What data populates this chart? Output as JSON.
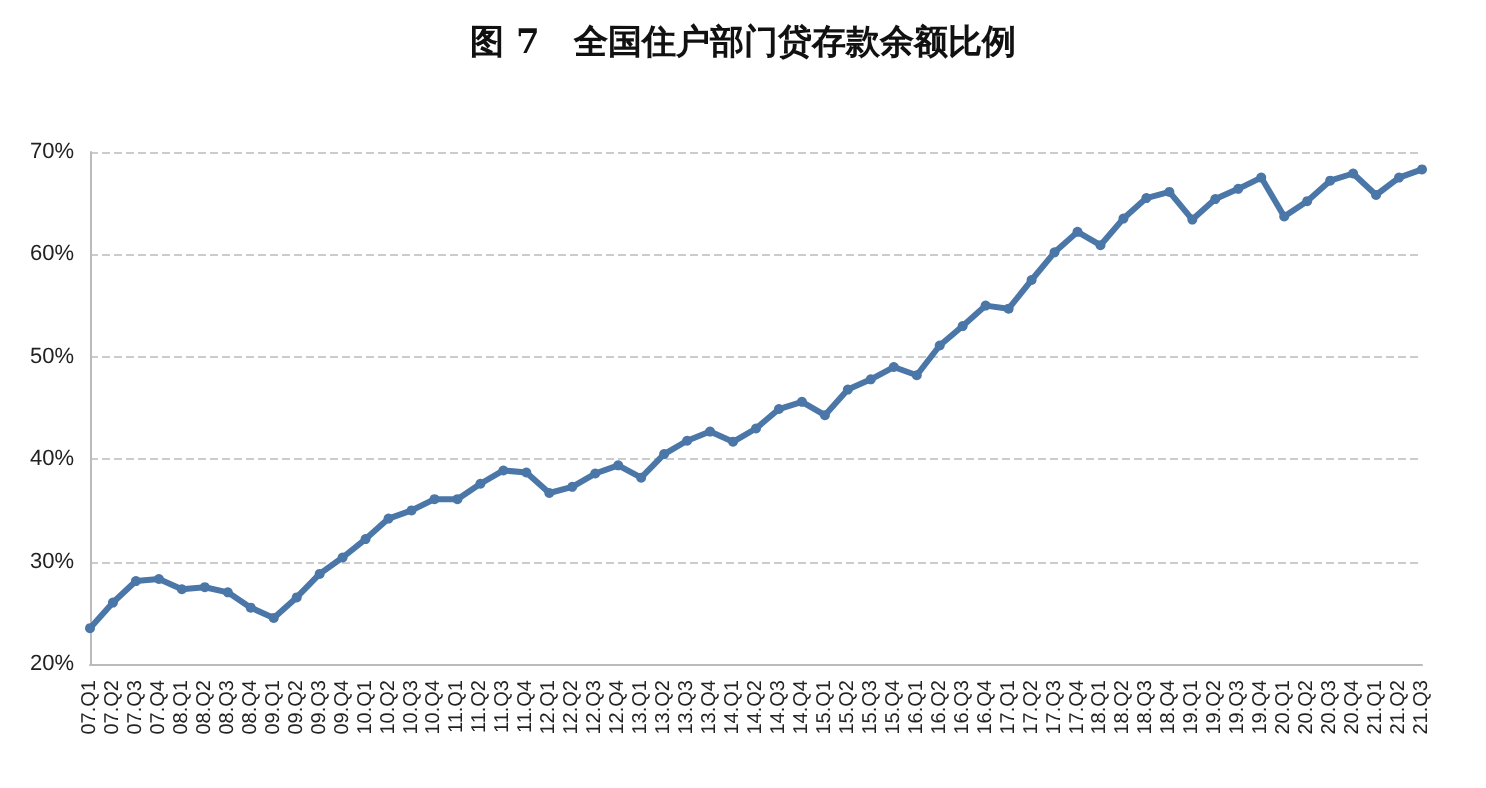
{
  "chart_data": {
    "type": "line",
    "title": "图 7　全国住户部门贷存款余额比例",
    "categories": [
      "07.Q1",
      "07.Q2",
      "07.Q3",
      "07.Q4",
      "08.Q1",
      "08.Q2",
      "08.Q3",
      "08.Q4",
      "09.Q1",
      "09.Q2",
      "09.Q3",
      "09.Q4",
      "10.Q1",
      "10.Q2",
      "10.Q3",
      "10.Q4",
      "11.Q1",
      "11.Q2",
      "11.Q3",
      "11.Q4",
      "12.Q1",
      "12.Q2",
      "12.Q3",
      "12.Q4",
      "13.Q1",
      "13.Q2",
      "13.Q3",
      "13.Q4",
      "14.Q1",
      "14.Q2",
      "14.Q3",
      "14.Q4",
      "15.Q1",
      "15.Q2",
      "15.Q3",
      "15.Q4",
      "16.Q1",
      "16.Q2",
      "16.Q3",
      "16.Q4",
      "17.Q1",
      "17.Q2",
      "17.Q3",
      "17.Q4",
      "18.Q1",
      "18.Q2",
      "18.Q3",
      "18.Q4",
      "19.Q1",
      "19.Q2",
      "19.Q3",
      "19.Q4",
      "20.Q1",
      "20.Q2",
      "20.Q3",
      "20.Q4",
      "21.Q1",
      "21.Q2",
      "21.Q3"
    ],
    "series": [
      {
        "color": "#4a76a8",
        "values": [
          23.5,
          26,
          28.1,
          28.3,
          27.3,
          27.5,
          27,
          25.5,
          24.5,
          26.5,
          28.8,
          30.4,
          32.2,
          34.2,
          35,
          36.1,
          36.1,
          37.6,
          38.9,
          38.7,
          36.7,
          37.3,
          38.6,
          39.4,
          38.2,
          40.5,
          41.8,
          42.7,
          41.7,
          43,
          44.9,
          45.6,
          44.3,
          46.8,
          47.8,
          49,
          48.2,
          51.1,
          53,
          55,
          54.7,
          57.5,
          60.2,
          62.2,
          60.9,
          63.5,
          65.5,
          66.1,
          63.4,
          65.4,
          66.4,
          67.5,
          63.7,
          65.2,
          67.2,
          67.9,
          65.8,
          67.5,
          68.3
        ]
      }
    ],
    "ylim": [
      20,
      70
    ],
    "yticks": [
      {
        "value": 20,
        "label": "20%"
      },
      {
        "value": 30,
        "label": "30%"
      },
      {
        "value": 40,
        "label": "40%"
      },
      {
        "value": 50,
        "label": "50%"
      },
      {
        "value": 60,
        "label": "60%"
      },
      {
        "value": 70,
        "label": "70%"
      }
    ],
    "grid": "y",
    "marker": "circle",
    "line_style": "solid"
  }
}
